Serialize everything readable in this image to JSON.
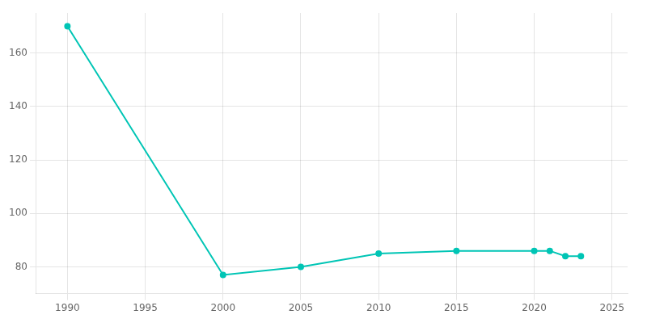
{
  "chart_data": {
    "type": "line",
    "x": [
      1990,
      2000,
      2005,
      2010,
      2015,
      2020,
      2021,
      2022,
      2023
    ],
    "values": [
      170,
      77,
      80,
      85,
      86,
      86,
      86,
      84,
      84
    ],
    "color": "#00C5B5",
    "marker": "circle",
    "xlim": [
      1988,
      2026
    ],
    "ylim": [
      70,
      175
    ],
    "xticks": [
      1990,
      1995,
      2000,
      2005,
      2010,
      2015,
      2020,
      2025
    ],
    "yticks": [
      80,
      100,
      120,
      140,
      160
    ],
    "grid": true
  }
}
